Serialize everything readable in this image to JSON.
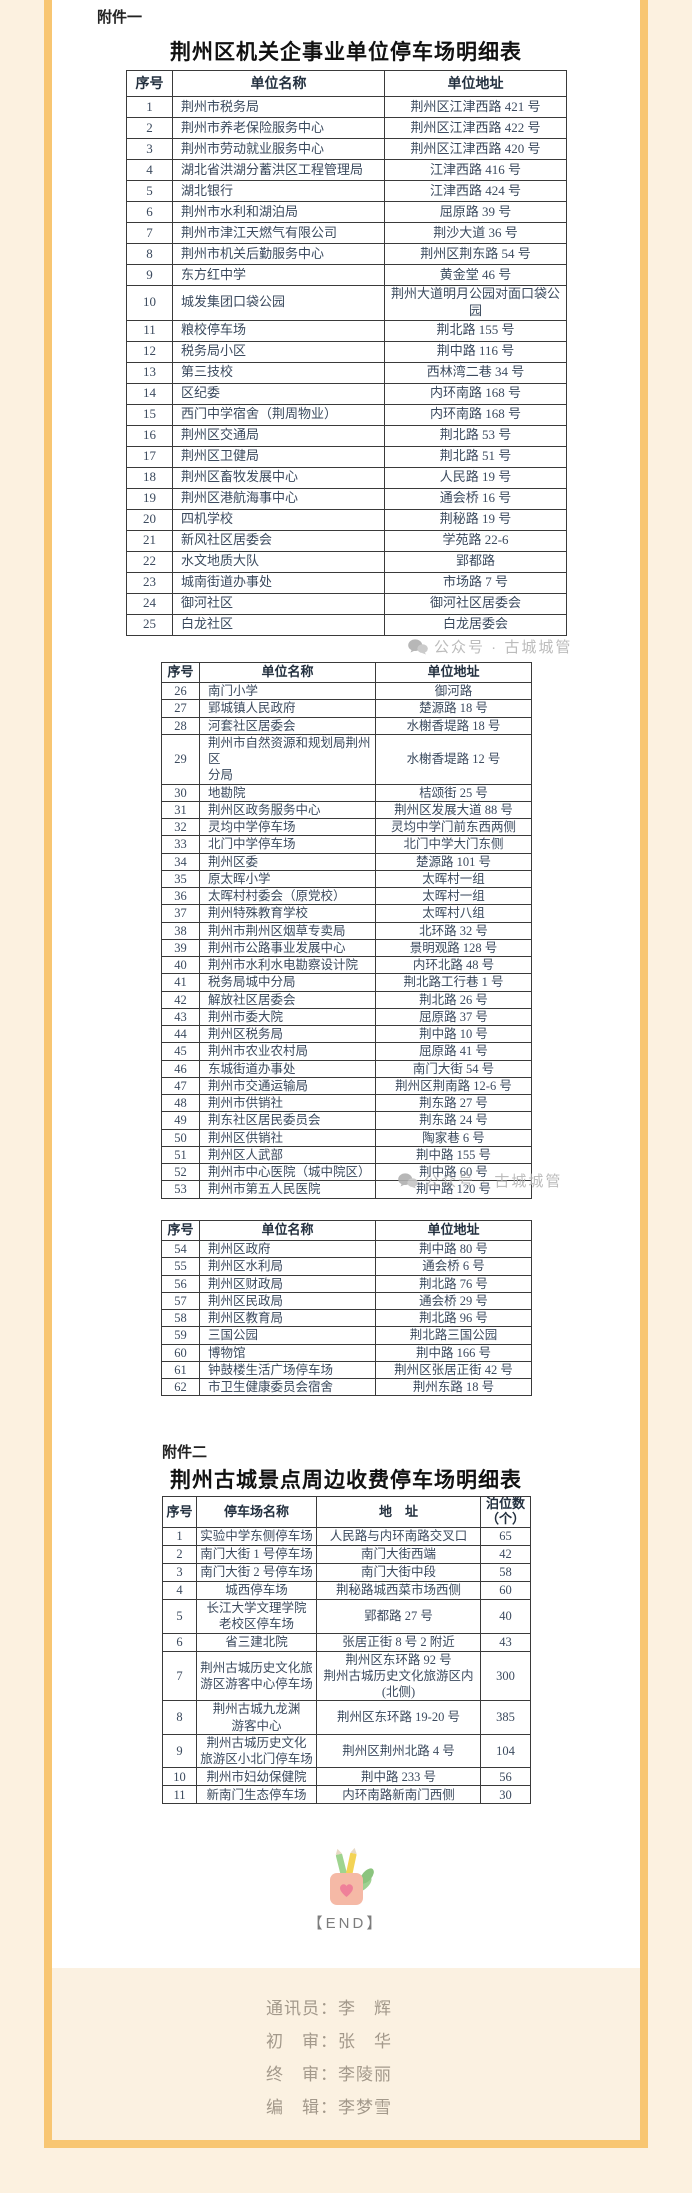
{
  "page": {
    "attachment1_label": "附件一",
    "attachment2_label": "附件二",
    "watermark_text": "公众号 · 古城城管",
    "end_marker": "【END】",
    "colors": {
      "frame_orange": "#f8c672",
      "outer_cream": "#fcf1e0",
      "footer_cream": "#fbf1e1",
      "table_text": "#3b4a5e",
      "watermark_gray": "#b5b5b5"
    }
  },
  "table1": {
    "title": "荆州区机关企事业单位停车场明细表",
    "headers": [
      "序号",
      "单位名称",
      "单位地址"
    ],
    "rows": [
      [
        "1",
        "荆州市税务局",
        "荆州区江津西路 421 号"
      ],
      [
        "2",
        "荆州市养老保险服务中心",
        "荆州区江津西路 422 号"
      ],
      [
        "3",
        "荆州市劳动就业服务中心",
        "荆州区江津西路 420 号"
      ],
      [
        "4",
        "湖北省洪湖分蓄洪区工程管理局",
        "江津西路 416 号"
      ],
      [
        "5",
        "湖北银行",
        "江津西路 424 号"
      ],
      [
        "6",
        "荆州市水利和湖泊局",
        "屈原路 39 号"
      ],
      [
        "7",
        "荆州市津江天燃气有限公司",
        "荆沙大道 36 号"
      ],
      [
        "8",
        "荆州市机关后勤服务中心",
        "荆州区荆东路 54 号"
      ],
      [
        "9",
        "东方红中学",
        "黄金堂 46 号"
      ],
      [
        "10",
        "城发集团口袋公园",
        "荆州大道明月公园对面口袋公\n园"
      ],
      [
        "11",
        "粮校停车场",
        "荆北路 155 号"
      ],
      [
        "12",
        "税务局小区",
        "荆中路 116 号"
      ],
      [
        "13",
        "第三技校",
        "西林湾二巷 34 号"
      ],
      [
        "14",
        "区纪委",
        "内环南路 168 号"
      ],
      [
        "15",
        "西门中学宿舍（荆周物业）",
        "内环南路 168 号"
      ],
      [
        "16",
        "荆州区交通局",
        "荆北路 53 号"
      ],
      [
        "17",
        "荆州区卫健局",
        "荆北路 51 号"
      ],
      [
        "18",
        "荆州区畜牧发展中心",
        "人民路 19 号"
      ],
      [
        "19",
        "荆州区港航海事中心",
        "通会桥 16 号"
      ],
      [
        "20",
        "四机学校",
        "荆秘路 19 号"
      ],
      [
        "21",
        "新风社区居委会",
        "学苑路 22-6"
      ],
      [
        "22",
        "水文地质大队",
        "郢都路"
      ],
      [
        "23",
        "城南街道办事处",
        "市场路 7 号"
      ],
      [
        "24",
        "御河社区",
        "御河社区居委会"
      ],
      [
        "25",
        "白龙社区",
        "白龙居委会"
      ]
    ]
  },
  "table2": {
    "headers": [
      "序号",
      "单位名称",
      "单位地址"
    ],
    "rows": [
      [
        "26",
        "南门小学",
        "御河路"
      ],
      [
        "27",
        "郢城镇人民政府",
        "楚源路 18 号"
      ],
      [
        "28",
        "河套社区居委会",
        "水榭香堤路 18 号"
      ],
      [
        "29",
        "荆州市自然资源和规划局荆州区\n分局",
        "水榭香堤路 12 号"
      ],
      [
        "30",
        "地勘院",
        "桔颂街 25 号"
      ],
      [
        "31",
        "荆州区政务服务中心",
        "荆州区发展大道 88 号"
      ],
      [
        "32",
        "灵均中学停车场",
        "灵均中学门前东西两侧"
      ],
      [
        "33",
        "北门中学停车场",
        "北门中学大门东侧"
      ],
      [
        "34",
        "荆州区委",
        "楚源路 101 号"
      ],
      [
        "35",
        "原太晖小学",
        "太晖村一组"
      ],
      [
        "36",
        "太晖村村委会（原党校）",
        "太晖村一组"
      ],
      [
        "37",
        "荆州特殊教育学校",
        "太晖村八组"
      ],
      [
        "38",
        "荆州市荆州区烟草专卖局",
        "北环路 32 号"
      ],
      [
        "39",
        "荆州市公路事业发展中心",
        "景明观路 128 号"
      ],
      [
        "40",
        "荆州市水利水电勘察设计院",
        "内环北路 48 号"
      ],
      [
        "41",
        "税务局城中分局",
        "荆北路工行巷 1 号"
      ],
      [
        "42",
        "解放社区居委会",
        "荆北路 26 号"
      ],
      [
        "43",
        "荆州市委大院",
        "屈原路 37 号"
      ],
      [
        "44",
        "荆州区税务局",
        "荆中路 10 号"
      ],
      [
        "45",
        "荆州市农业农村局",
        "屈原路 41 号"
      ],
      [
        "46",
        "东城街道办事处",
        "南门大街 54 号"
      ],
      [
        "47",
        "荆州市交通运输局",
        "荆州区荆南路 12-6 号"
      ],
      [
        "48",
        "荆州市供销社",
        "荆东路 27 号"
      ],
      [
        "49",
        "荆东社区居民委员会",
        "荆东路 24 号"
      ],
      [
        "50",
        "荆州区供销社",
        "陶家巷 6 号"
      ],
      [
        "51",
        "荆州区人武部",
        "荆中路 155 号"
      ],
      [
        "52",
        "荆州市中心医院（城中院区）",
        "荆中路 60 号"
      ],
      [
        "53",
        "荆州市第五人民医院",
        "荆中路 120 号"
      ]
    ]
  },
  "table3": {
    "headers": [
      "序号",
      "单位名称",
      "单位地址"
    ],
    "rows": [
      [
        "54",
        "荆州区政府",
        "荆中路 80 号"
      ],
      [
        "55",
        "荆州区水利局",
        "通会桥 6 号"
      ],
      [
        "56",
        "荆州区财政局",
        "荆北路 76 号"
      ],
      [
        "57",
        "荆州区民政局",
        "通会桥 29 号"
      ],
      [
        "58",
        "荆州区教育局",
        "荆北路 96 号"
      ],
      [
        "59",
        "三国公园",
        "荆北路三国公园"
      ],
      [
        "60",
        "博物馆",
        "荆中路 166 号"
      ],
      [
        "61",
        "钟鼓楼生活广场停车场",
        "荆州区张居正街 42 号"
      ],
      [
        "62",
        "市卫生健康委员会宿舍",
        "荆州东路 18 号"
      ]
    ]
  },
  "table4": {
    "title": "荆州古城景点周边收费停车场明细表",
    "headers": [
      "序号",
      "停车场名称",
      "地　址",
      "泊位数\n（个）"
    ],
    "rows": [
      [
        "1",
        "实验中学东侧停车场",
        "人民路与内环南路交叉口",
        "65"
      ],
      [
        "2",
        "南门大街 1 号停车场",
        "南门大街西端",
        "42"
      ],
      [
        "3",
        "南门大街 2 号停车场",
        "南门大街中段",
        "58"
      ],
      [
        "4",
        "城西停车场",
        "荆秘路城西菜市场西侧",
        "60"
      ],
      [
        "5",
        "长江大学文理学院\n老校区停车场",
        "郢都路 27 号",
        "40"
      ],
      [
        "6",
        "省三建北院",
        "张居正街 8 号 2 附近",
        "43"
      ],
      [
        "7",
        "荆州古城历史文化旅\n游区游客中心停车场",
        "荆州区东环路 92 号\n荆州古城历史文化旅游区内(北侧)",
        "300"
      ],
      [
        "8",
        "荆州古城九龙渊\n游客中心",
        "荆州区东环路 19-20 号",
        "385"
      ],
      [
        "9",
        "荆州古城历史文化\n旅游区小北门停车场",
        "荆州区荆州北路 4 号",
        "104"
      ],
      [
        "10",
        "荆州市妇幼保健院",
        "荆中路 233 号",
        "56"
      ],
      [
        "11",
        "新南门生态停车场",
        "内环南路新南门西侧",
        "30"
      ]
    ]
  },
  "footer": {
    "lines": [
      "通讯员：李　辉",
      "初　审：张　华",
      "终　审：李陵丽",
      "编　辑：李梦雪"
    ]
  }
}
